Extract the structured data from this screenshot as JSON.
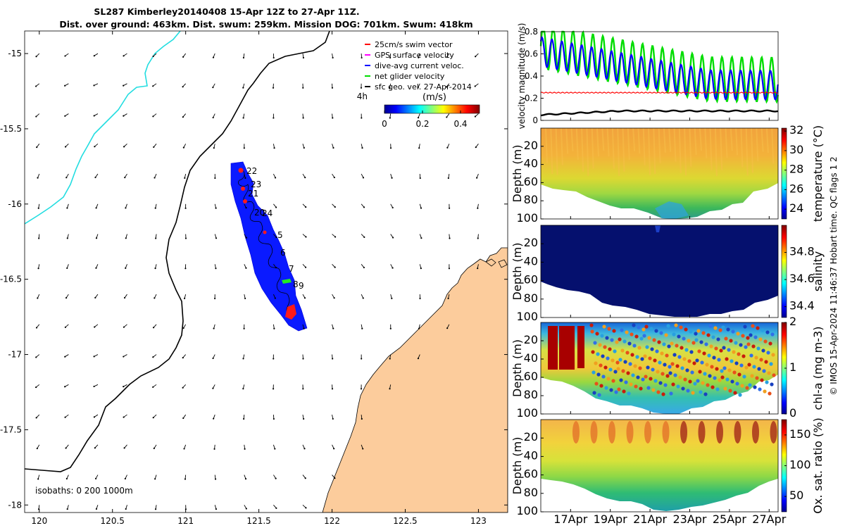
{
  "header": {
    "title_line1": "SL287 Kimberley20140408 15-Apr 12Z to 27-Apr 11Z.",
    "title_line2": "Dist. over ground: 463km. Dist. swum: 259km. Mission DOG: 701km. Swum: 418km"
  },
  "map": {
    "lon_ticks": [
      "120",
      "120.5",
      "121",
      "121.5",
      "122",
      "122.5",
      "123"
    ],
    "lat_ticks": [
      "-15",
      "-15.5",
      "-16",
      "-16.5",
      "-17",
      "-17.5",
      "-18"
    ],
    "lon_range": [
      119.9,
      123.2
    ],
    "lat_range": [
      -18.05,
      -14.85
    ],
    "legend": [
      {
        "label": "25cm/s swim vector",
        "color": "#ff0000"
      },
      {
        "label": "GPS surface velocity",
        "color": "#ff00ff"
      },
      {
        "label": "dive-avg current veloc.",
        "color": "#0000ff"
      },
      {
        "label": "net glider velocity",
        "color": "#00dd00"
      },
      {
        "label": "sfc geo. vel. 27-Apr-2014",
        "color": "#000000"
      }
    ],
    "legend_extra": "4h",
    "colorbar": {
      "unit": "(m/s)",
      "ticks": [
        "0",
        "0.2",
        "0.4"
      ],
      "range": [
        0,
        0.5
      ]
    },
    "track_labels": [
      "22",
      "23",
      "21",
      "20",
      "24",
      "5",
      "6",
      "7",
      "8",
      "9"
    ],
    "isobaths_label": "isobaths: 0   200  1000m"
  },
  "chart_data": [
    {
      "type": "line",
      "ylabel": "velocity magnitude (m/s)",
      "ylim": [
        0,
        0.8
      ],
      "y_ticks": [
        "0",
        "0.2",
        "0.4",
        "0.6",
        "0.8"
      ],
      "x_ticks": [
        "17Apr",
        "19Apr",
        "21Apr",
        "23Apr",
        "25Apr",
        "27Apr"
      ],
      "xlim": [
        15.5,
        27.45
      ],
      "series_style": [
        {
          "color": "#00dd00"
        },
        {
          "color": "#0000ff"
        },
        {
          "color": "#ff0000"
        },
        {
          "color": "#000000"
        }
      ]
    },
    {
      "type": "heatmap",
      "ylabel": "Depth (m)",
      "cbar_label": "temperature (°C)",
      "cbar_ticks": [
        "24",
        "26",
        "28",
        "30",
        "32"
      ],
      "cbar_range": [
        23,
        32.3
      ],
      "y_ticks": [
        "20",
        "40",
        "60",
        "80",
        "100"
      ]
    },
    {
      "type": "heatmap",
      "ylabel": "Depth (m)",
      "cbar_label": "salinity",
      "cbar_ticks": [
        "34.4",
        "34.6",
        "34.8"
      ],
      "cbar_range": [
        34.32,
        35.0
      ],
      "y_ticks": [
        "20",
        "40",
        "60",
        "80",
        "100"
      ]
    },
    {
      "type": "heatmap",
      "ylabel": "Depth (m)",
      "cbar_label": "chl-a (mg m-3)",
      "cbar_ticks": [
        "0",
        "1",
        "2"
      ],
      "cbar_range": [
        0,
        2
      ],
      "y_ticks": [
        "20",
        "40",
        "60",
        "80",
        "100"
      ]
    },
    {
      "type": "heatmap",
      "ylabel": "Depth (m)",
      "cbar_label": "Ox. sat. ratio (%)",
      "cbar_ticks": [
        "50",
        "100",
        "150"
      ],
      "cbar_range": [
        25,
        175
      ],
      "y_ticks": [
        "20",
        "40",
        "60",
        "80",
        "100"
      ]
    }
  ],
  "footer": {
    "credit": "© IMOS 15-Apr-2024 11:46:37 Hobart time. QC flags 1  2"
  }
}
